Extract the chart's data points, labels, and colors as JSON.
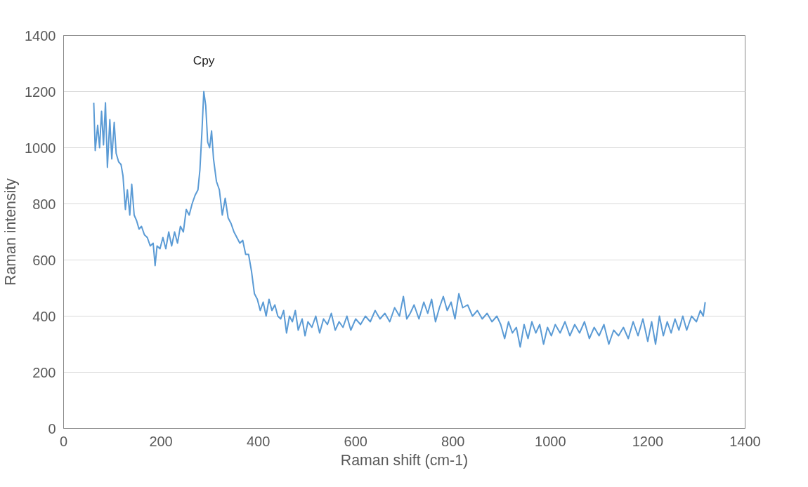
{
  "chart_data": {
    "type": "line",
    "xlabel": "Raman shift (cm-1)",
    "ylabel": "Raman intensity",
    "xlim": [
      0,
      1400
    ],
    "xticks": [
      0,
      200,
      400,
      600,
      800,
      1000,
      1200,
      1400
    ],
    "ylim": [
      0,
      1400
    ],
    "yticks": [
      0,
      200,
      400,
      600,
      800,
      1000,
      1200,
      1400
    ],
    "grid": "y",
    "marker": "none",
    "line_style": "solid",
    "annotations": [
      "Cpy"
    ],
    "series": [
      {
        "color": "#5b9bd5",
        "x": [
          62,
          65,
          70,
          74,
          78,
          82,
          86,
          90,
          95,
          99,
          104,
          108,
          113,
          118,
          122,
          127,
          131,
          136,
          140,
          145,
          150,
          155,
          160,
          166,
          172,
          178,
          184,
          188,
          192,
          198,
          204,
          210,
          216,
          222,
          228,
          234,
          240,
          246,
          252,
          258,
          264,
          270,
          276,
          280,
          284,
          288,
          292,
          296,
          300,
          304,
          308,
          314,
          320,
          326,
          332,
          338,
          344,
          350,
          356,
          362,
          368,
          374,
          380,
          386,
          392,
          398,
          404,
          410,
          416,
          422,
          428,
          434,
          440,
          446,
          452,
          458,
          464,
          470,
          476,
          482,
          490,
          496,
          502,
          510,
          518,
          526,
          534,
          542,
          550,
          558,
          566,
          574,
          582,
          590,
          600,
          610,
          620,
          630,
          640,
          650,
          660,
          670,
          680,
          690,
          698,
          705,
          712,
          720,
          730,
          740,
          748,
          756,
          764,
          772,
          780,
          788,
          796,
          804,
          812,
          820,
          830,
          840,
          850,
          860,
          870,
          880,
          890,
          898,
          906,
          914,
          922,
          930,
          938,
          946,
          954,
          962,
          970,
          978,
          986,
          994,
          1002,
          1010,
          1020,
          1030,
          1040,
          1050,
          1060,
          1070,
          1080,
          1090,
          1100,
          1110,
          1120,
          1130,
          1140,
          1150,
          1160,
          1170,
          1180,
          1190,
          1200,
          1208,
          1216,
          1224,
          1232,
          1240,
          1248,
          1256,
          1264,
          1272,
          1280,
          1290,
          1300,
          1308,
          1314,
          1318
        ],
        "values": [
          1160,
          990,
          1080,
          1000,
          1130,
          1010,
          1160,
          930,
          1100,
          960,
          1090,
          980,
          950,
          940,
          900,
          780,
          850,
          760,
          870,
          760,
          740,
          710,
          720,
          690,
          680,
          650,
          660,
          580,
          650,
          640,
          680,
          640,
          700,
          650,
          700,
          660,
          720,
          700,
          780,
          760,
          800,
          830,
          850,
          920,
          1050,
          1200,
          1150,
          1020,
          1000,
          1060,
          960,
          880,
          850,
          760,
          820,
          750,
          730,
          700,
          680,
          660,
          670,
          620,
          620,
          560,
          480,
          460,
          420,
          450,
          400,
          460,
          420,
          440,
          400,
          390,
          420,
          340,
          400,
          380,
          420,
          350,
          390,
          330,
          380,
          360,
          400,
          340,
          390,
          370,
          410,
          350,
          380,
          360,
          400,
          350,
          390,
          370,
          400,
          380,
          420,
          390,
          410,
          380,
          430,
          400,
          470,
          390,
          410,
          440,
          390,
          450,
          410,
          460,
          380,
          430,
          470,
          420,
          450,
          390,
          480,
          430,
          440,
          400,
          420,
          390,
          410,
          380,
          400,
          370,
          320,
          380,
          340,
          360,
          290,
          370,
          320,
          380,
          340,
          370,
          300,
          360,
          330,
          370,
          340,
          380,
          330,
          370,
          340,
          380,
          320,
          360,
          330,
          370,
          300,
          350,
          330,
          360,
          320,
          380,
          330,
          390,
          310,
          380,
          300,
          400,
          330,
          380,
          340,
          390,
          350,
          400,
          350,
          400,
          380,
          420,
          400,
          450
        ]
      }
    ]
  }
}
